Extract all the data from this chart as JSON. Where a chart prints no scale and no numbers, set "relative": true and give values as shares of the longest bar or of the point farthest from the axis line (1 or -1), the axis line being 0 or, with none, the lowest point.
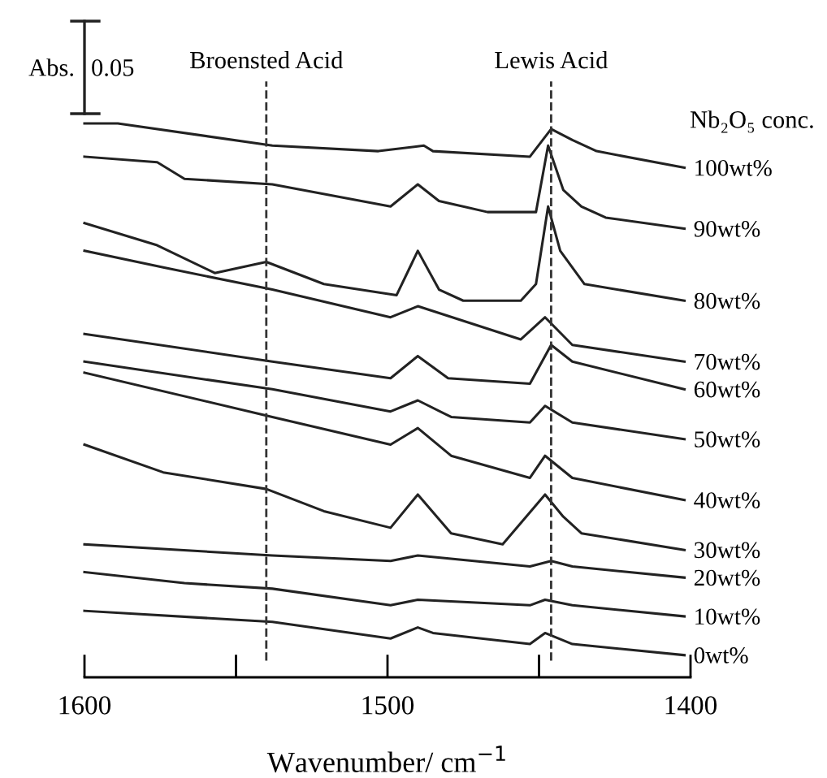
{
  "chart_data": {
    "type": "line",
    "relative": true,
    "xlabel": "Wavenumber/ cm$^{−1}$",
    "legend_title": "Nb₂O₅ conc.",
    "annotations": [
      "Abs.",
      "0.05"
    ],
    "xlim": [
      1600,
      1400
    ],
    "xticks": [
      1600,
      {
        "value": 1550,
        "label": null
      },
      1500,
      {
        "value": 1450,
        "label": null
      },
      1400
    ],
    "tick_labels": "x",
    "grid": false,
    "marker": "none",
    "line_style": "solid",
    "ref_lines": [
      {
        "axis": "x",
        "value": 1540,
        "label": "Broensted Acid",
        "color": "#333333",
        "line_style": "dashed"
      },
      {
        "axis": "x",
        "value": 1446,
        "label": "Lewis Acid",
        "color": "#333333",
        "line_style": "dashed"
      }
    ],
    "series": [
      {
        "name": "100wt%",
        "color": "#222222",
        "x": [
          1600,
          1589,
          1538,
          1503,
          1488,
          1485,
          1453,
          1446,
          1439,
          1431,
          1402
        ],
        "values": [
          1.0,
          1.0,
          0.96,
          0.95,
          0.96,
          0.95,
          0.94,
          0.99,
          0.97,
          0.95,
          0.92
        ]
      },
      {
        "name": "90wt%",
        "color": "#222222",
        "x": [
          1600,
          1576,
          1567,
          1538,
          1499,
          1490,
          1483,
          1467,
          1451,
          1447,
          1442,
          1436,
          1428,
          1402
        ],
        "values": [
          0.94,
          0.93,
          0.9,
          0.89,
          0.85,
          0.89,
          0.86,
          0.84,
          0.84,
          0.96,
          0.88,
          0.85,
          0.83,
          0.81
        ]
      },
      {
        "name": "80wt%",
        "color": "#222222",
        "x": [
          1600,
          1576,
          1557,
          1540,
          1521,
          1497,
          1490,
          1483,
          1475,
          1456,
          1451,
          1447,
          1443,
          1435,
          1402
        ],
        "values": [
          0.82,
          0.78,
          0.73,
          0.75,
          0.71,
          0.69,
          0.77,
          0.7,
          0.68,
          0.68,
          0.71,
          0.85,
          0.77,
          0.71,
          0.68
        ]
      },
      {
        "name": "70wt%",
        "color": "#222222",
        "x": [
          1600,
          1574,
          1538,
          1499,
          1490,
          1456,
          1448,
          1439,
          1402
        ],
        "values": [
          0.77,
          0.74,
          0.7,
          0.65,
          0.67,
          0.61,
          0.65,
          0.6,
          0.57
        ]
      },
      {
        "name": "60wt%",
        "color": "#222222",
        "x": [
          1600,
          1538,
          1499,
          1490,
          1480,
          1453,
          1446,
          1439,
          1402
        ],
        "values": [
          0.62,
          0.57,
          0.54,
          0.58,
          0.54,
          0.53,
          0.6,
          0.57,
          0.52
        ]
      },
      {
        "name": "50wt%",
        "color": "#222222",
        "x": [
          1600,
          1538,
          1499,
          1490,
          1479,
          1453,
          1448,
          1439,
          1402
        ],
        "values": [
          0.57,
          0.52,
          0.48,
          0.5,
          0.47,
          0.46,
          0.49,
          0.46,
          0.43
        ]
      },
      {
        "name": "40wt%",
        "color": "#222222",
        "x": [
          1600,
          1538,
          1499,
          1490,
          1479,
          1453,
          1448,
          1439,
          1402
        ],
        "values": [
          0.55,
          0.47,
          0.42,
          0.45,
          0.4,
          0.36,
          0.4,
          0.36,
          0.32
        ]
      },
      {
        "name": "30wt%",
        "color": "#222222",
        "x": [
          1600,
          1574,
          1540,
          1521,
          1499,
          1490,
          1479,
          1462,
          1448,
          1442,
          1436,
          1402
        ],
        "values": [
          0.42,
          0.37,
          0.34,
          0.3,
          0.27,
          0.33,
          0.26,
          0.24,
          0.33,
          0.29,
          0.26,
          0.23
        ]
      },
      {
        "name": "20wt%",
        "color": "#222222",
        "x": [
          1600,
          1538,
          1499,
          1490,
          1453,
          1446,
          1439,
          1402
        ],
        "values": [
          0.24,
          0.22,
          0.21,
          0.22,
          0.2,
          0.21,
          0.2,
          0.18
        ]
      },
      {
        "name": "10wt%",
        "color": "#222222",
        "x": [
          1600,
          1567,
          1538,
          1499,
          1490,
          1453,
          1448,
          1439,
          1402
        ],
        "values": [
          0.19,
          0.17,
          0.16,
          0.13,
          0.14,
          0.13,
          0.14,
          0.13,
          0.11
        ]
      },
      {
        "name": "0wt%",
        "color": "#222222",
        "x": [
          1600,
          1538,
          1499,
          1490,
          1485,
          1453,
          1448,
          1439,
          1402
        ],
        "values": [
          0.12,
          0.1,
          0.07,
          0.09,
          0.08,
          0.06,
          0.08,
          0.06,
          0.04
        ]
      }
    ]
  }
}
